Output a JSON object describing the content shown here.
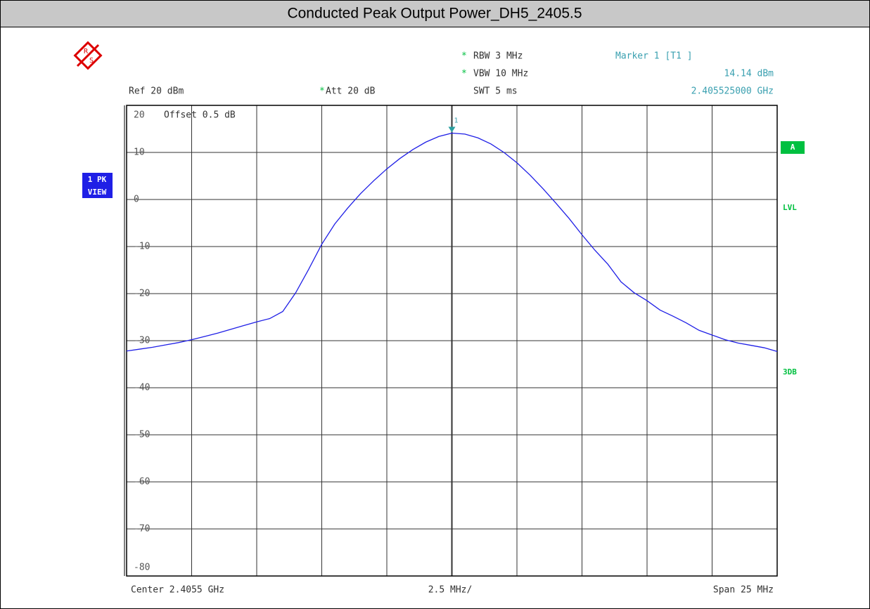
{
  "chart_data": {
    "type": "line",
    "title": "Conducted Peak Output Power_DH5_2405.5",
    "logo": [
      "R",
      "S"
    ],
    "settings": {
      "ref": "Ref  20 dBm",
      "att_flag": "*",
      "att": "Att  20 dB",
      "rbw_flag": "*",
      "rbw": "RBW  3 MHz",
      "vbw_flag": "*",
      "vbw": "VBW  10 MHz",
      "swt": "SWT  5 ms",
      "offset": "Offset  0.5 dB"
    },
    "marker": {
      "name": "Marker 1 [T1 ]",
      "level": "14.14 dBm",
      "frequency": "2.405525000 GHz",
      "label": "1"
    },
    "side_labels": {
      "trace": [
        "1 PK",
        "VIEW"
      ],
      "right": [
        "A",
        "LVL",
        "3DB"
      ]
    },
    "footer": {
      "center": "Center  2.4055 GHz",
      "div": "2.5 MHz/",
      "span": "Span  25 MHz"
    },
    "ylim": [
      -80,
      20
    ],
    "yticks": [
      20,
      10,
      0,
      -10,
      -20,
      -30,
      -40,
      -50,
      -60,
      -70,
      -80
    ],
    "grid": true,
    "marker_index": 25,
    "series": [
      {
        "name": "1 PK",
        "color": "#1f1fe6",
        "values": [
          -32.2,
          -31.8,
          -31.4,
          -30.9,
          -30.4,
          -29.8,
          -29.1,
          -28.4,
          -27.6,
          -26.8,
          -26,
          -25.3,
          -23.8,
          -19.8,
          -14.8,
          -9.5,
          -5.2,
          -1.8,
          1.3,
          4,
          6.5,
          8.7,
          10.6,
          12.2,
          13.4,
          14.1,
          13.9,
          13.1,
          11.8,
          10,
          7.8,
          5.2,
          2.3,
          -0.8,
          -4,
          -7.5,
          -10.8,
          -13.8,
          -17.5,
          -19.8,
          -21.5,
          -23.5,
          -24.8,
          -26.2,
          -27.8,
          -28.8,
          -29.8,
          -30.5,
          -31,
          -31.5,
          -32.3
        ]
      }
    ]
  }
}
